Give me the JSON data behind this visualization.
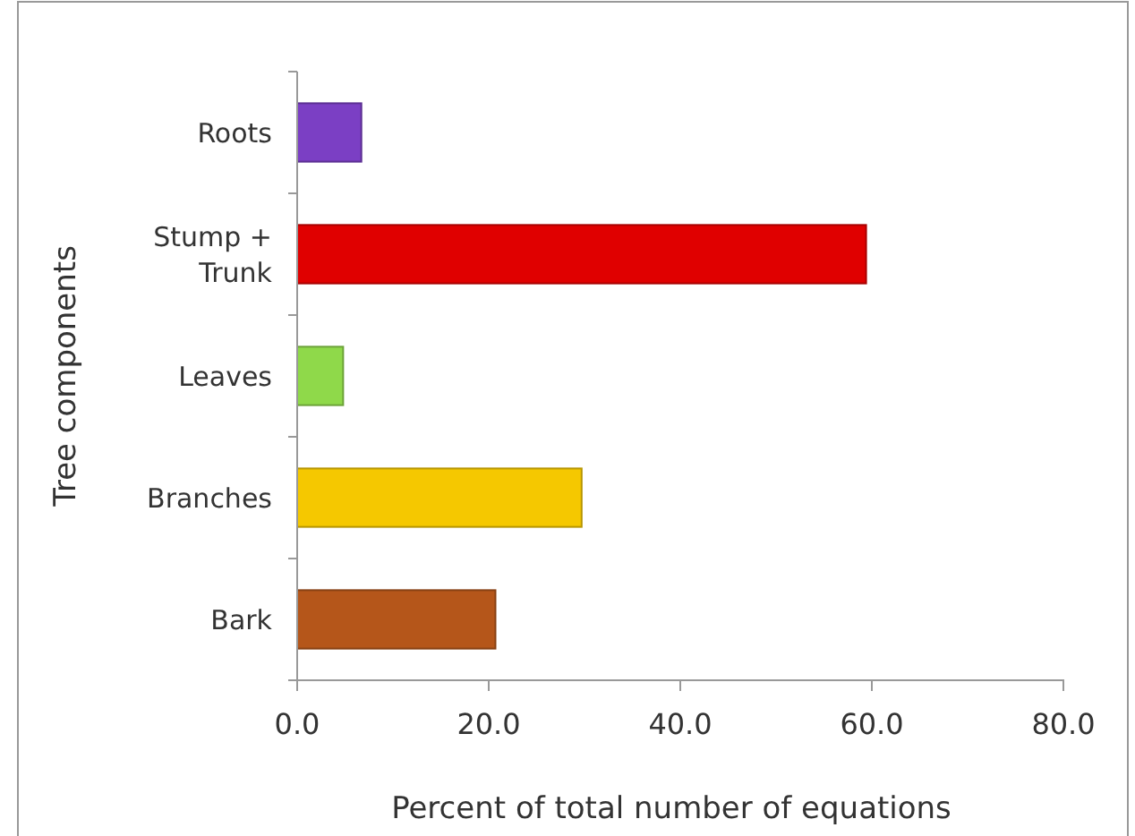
{
  "chart_data": {
    "type": "bar",
    "orientation": "horizontal",
    "xlabel": "Percent of total number of equations",
    "ylabel": "Tree components",
    "categories": [
      "Roots",
      "Stump + Trunk",
      "Leaves",
      "Branches",
      "Bark"
    ],
    "values": [
      6.7,
      59.4,
      4.8,
      29.7,
      20.7
    ],
    "colors": [
      "#7b3fc4",
      "#e00000",
      "#8fd94a",
      "#f5c800",
      "#b5561a"
    ],
    "xlim": [
      0,
      80
    ],
    "xticks": [
      {
        "value": 0,
        "label": "0.0"
      },
      {
        "value": 20,
        "label": "20.0"
      },
      {
        "value": 40,
        "label": "40.0"
      },
      {
        "value": 60,
        "label": "60.0"
      },
      {
        "value": 80,
        "label": "80.0"
      }
    ]
  }
}
